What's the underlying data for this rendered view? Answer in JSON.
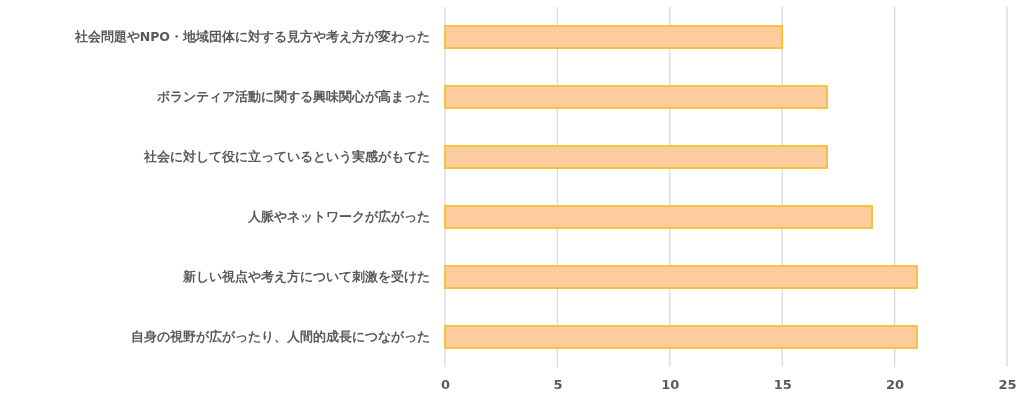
{
  "chart_data": {
    "type": "bar",
    "orientation": "horizontal",
    "categories": [
      "社会問題やNPO・地域団体に対する見方や考え方が変わった",
      "ボランティア活動に関する興味関心が高まった",
      "社会に対して役に立っているという実感がもてた",
      "人脈やネットワークが広がった",
      "新しい視点や考え方について刺激を受けた",
      "自身の視野が広がったり、人間的成長につながった"
    ],
    "values": [
      15,
      17,
      17,
      19,
      21,
      21
    ],
    "color": "#fdcc9e",
    "xlim": [
      0,
      25
    ],
    "xticks": [
      0,
      5,
      10,
      15,
      20,
      25
    ],
    "grid": "x"
  }
}
